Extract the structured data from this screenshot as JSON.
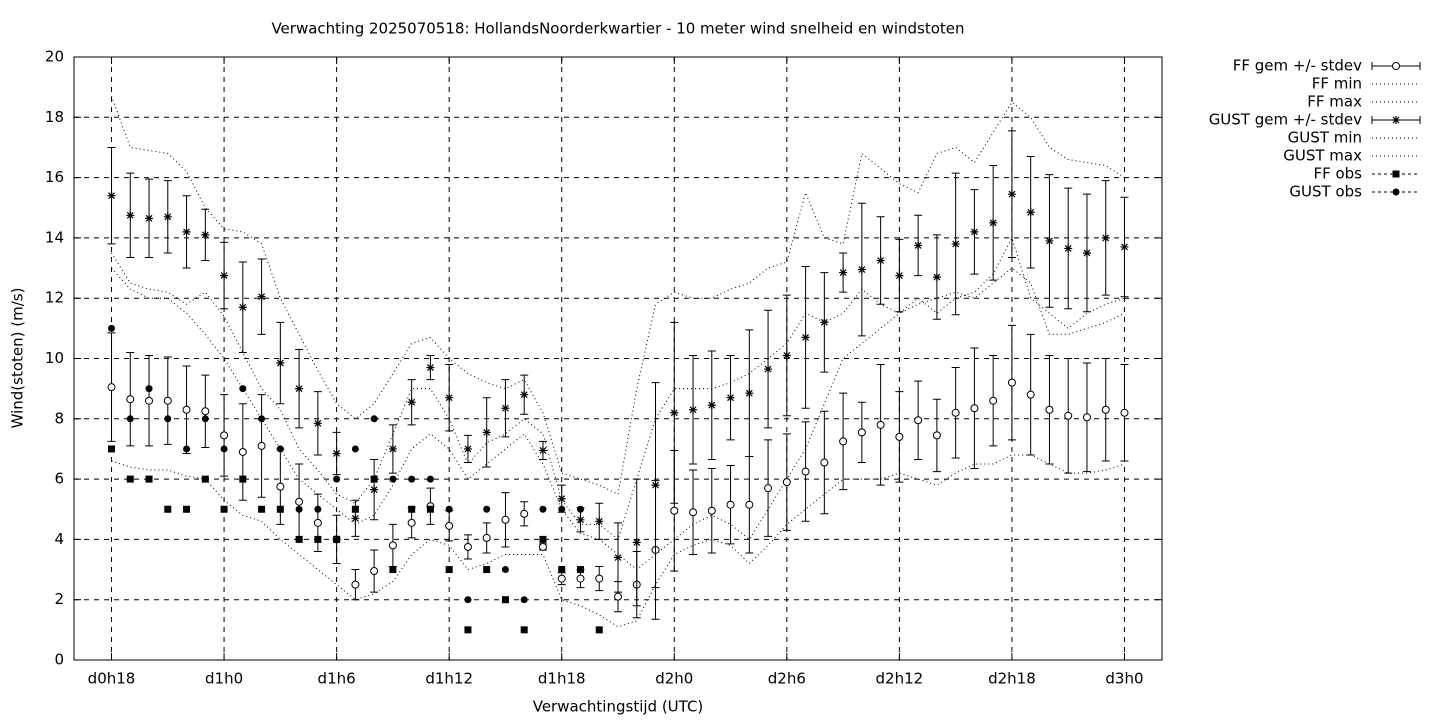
{
  "chart_data": {
    "type": "errorbar",
    "title": "Verwachting 2025070518: HollandsNoorderkwartier - 10 meter wind snelheid en windstoten",
    "xlabel": "Verwachtingstijd (UTC)",
    "ylabel": "Wind(stoten) (m/s)",
    "x": [
      0,
      1,
      2,
      3,
      4,
      5,
      6,
      7,
      8,
      9,
      10,
      11,
      12,
      13,
      14,
      15,
      16,
      17,
      18,
      19,
      20,
      21,
      22,
      23,
      24,
      25,
      26,
      27,
      28,
      29,
      30,
      31,
      32,
      33,
      34,
      35,
      36,
      37,
      38,
      39,
      40,
      41,
      42,
      43,
      44,
      45,
      46,
      47,
      48,
      49,
      50,
      51,
      52,
      53,
      54
    ],
    "xlim": [
      -2,
      56
    ],
    "xticks": [
      {
        "value": 0,
        "label": "d0h18"
      },
      {
        "value": 6,
        "label": "d1h0"
      },
      {
        "value": 12,
        "label": "d1h6"
      },
      {
        "value": 18,
        "label": "d1h12"
      },
      {
        "value": 24,
        "label": "d1h18"
      },
      {
        "value": 30,
        "label": "d2h0"
      },
      {
        "value": 36,
        "label": "d2h6"
      },
      {
        "value": 42,
        "label": "d2h12"
      },
      {
        "value": 48,
        "label": "d2h18"
      },
      {
        "value": 54,
        "label": "d3h0"
      }
    ],
    "ylim": [
      0,
      20
    ],
    "yticks": [
      0,
      2,
      4,
      6,
      8,
      10,
      12,
      14,
      16,
      18,
      20
    ],
    "grid": true,
    "legend": "outside-right",
    "series": [
      {
        "name": "FF gem +/- stdev",
        "color": "#000000",
        "marker": "open-circle",
        "values": [
          9.05,
          8.65,
          8.6,
          8.6,
          8.3,
          8.25,
          7.45,
          6.9,
          7.1,
          5.75,
          5.25,
          4.55,
          4.0,
          2.5,
          2.95,
          3.8,
          4.55,
          5.1,
          4.45,
          3.75,
          4.05,
          4.65,
          4.85,
          3.75,
          2.7,
          2.7,
          2.7,
          2.1,
          2.5,
          3.65,
          4.95,
          4.9,
          4.95,
          5.15,
          5.15,
          5.7,
          5.9,
          6.25,
          6.55,
          7.25,
          7.55,
          7.8,
          7.4,
          7.95,
          7.45,
          8.2,
          8.35,
          8.6,
          9.2,
          8.8,
          8.3,
          8.1,
          8.05,
          8.3,
          8.2
        ],
        "errors": [
          1.8,
          1.55,
          1.5,
          1.45,
          1.45,
          1.2,
          1.35,
          1.6,
          1.7,
          1.25,
          1.25,
          0.95,
          0.8,
          0.5,
          0.7,
          0.7,
          0.5,
          0.6,
          0.5,
          0.4,
          0.5,
          0.9,
          0.4,
          0.1,
          0.2,
          0.3,
          0.4,
          0.5,
          1.1,
          2.3,
          2.0,
          1.4,
          1.4,
          1.3,
          1.6,
          1.6,
          1.6,
          1.65,
          1.7,
          1.6,
          1.0,
          2.0,
          1.5,
          1.3,
          1.2,
          1.5,
          2.0,
          1.5,
          1.9,
          2.0,
          1.8,
          1.9,
          1.8,
          1.7,
          1.6
        ]
      },
      {
        "name": "FF min",
        "color": "#000000",
        "line": "dotted",
        "values": [
          6.6,
          6.4,
          6.3,
          6.3,
          6.1,
          6.0,
          5.3,
          4.8,
          4.6,
          4.0,
          3.5,
          3.0,
          2.5,
          2.0,
          2.2,
          2.6,
          3.5,
          4.0,
          3.8,
          3.0,
          3.2,
          3.5,
          3.5,
          3.5,
          2.0,
          1.8,
          1.5,
          1.1,
          1.3,
          2.5,
          3.5,
          3.8,
          4.0,
          3.8,
          3.2,
          3.8,
          4.5,
          5.0,
          5.5,
          6.0,
          6.0,
          6.0,
          6.2,
          6.0,
          5.8,
          6.2,
          6.5,
          6.5,
          6.8,
          6.8,
          6.5,
          6.2,
          6.2,
          6.3,
          6.5
        ]
      },
      {
        "name": "FF max",
        "color": "#000000",
        "line": "dotted",
        "values": [
          13.5,
          12.5,
          12.3,
          12.2,
          11.8,
          12.2,
          11.4,
          10.2,
          9.0,
          8.3,
          7.0,
          6.3,
          5.5,
          5.2,
          6.0,
          7.5,
          9.0,
          9.0,
          8.0,
          6.5,
          7.2,
          7.5,
          8.0,
          7.5,
          5.3,
          4.5,
          4.5,
          4.0,
          6.0,
          8.0,
          9.0,
          9.0,
          9.0,
          9.2,
          9.5,
          10.0,
          10.5,
          11.5,
          11.2,
          11.5,
          12.3,
          11.8,
          11.5,
          11.8,
          12.0,
          12.2,
          12.0,
          12.5,
          13.0,
          12.5,
          10.8,
          10.8,
          11.0,
          11.2,
          11.5
        ]
      },
      {
        "name": "GUST gem +/- stdev",
        "color": "#000000",
        "marker": "star",
        "values": [
          15.4,
          14.75,
          14.65,
          14.7,
          14.2,
          14.1,
          12.75,
          11.7,
          12.05,
          9.85,
          9.0,
          7.85,
          6.85,
          4.7,
          5.65,
          7.0,
          8.55,
          9.7,
          8.7,
          7.0,
          7.55,
          8.35,
          8.8,
          6.95,
          5.35,
          4.65,
          4.6,
          3.4,
          3.9,
          5.8,
          8.2,
          8.3,
          8.45,
          8.7,
          8.85,
          9.65,
          10.1,
          10.7,
          11.2,
          12.85,
          12.95,
          13.25,
          12.75,
          13.75,
          12.7,
          13.8,
          14.2,
          14.5,
          15.45,
          14.85,
          13.9,
          13.65,
          13.5,
          14.0,
          13.7
        ],
        "errors": [
          1.6,
          1.4,
          1.3,
          1.2,
          1.2,
          0.85,
          1.1,
          1.5,
          1.25,
          1.35,
          1.3,
          1.05,
          0.7,
          0.6,
          1.0,
          0.8,
          0.75,
          0.4,
          1.1,
          0.45,
          1.15,
          0.95,
          0.65,
          0.3,
          0.45,
          0.4,
          0.6,
          1.15,
          2.1,
          3.4,
          3.0,
          1.8,
          1.8,
          1.4,
          2.1,
          1.95,
          2.0,
          2.35,
          1.65,
          0.65,
          2.2,
          1.45,
          1.2,
          1.0,
          1.4,
          2.35,
          1.4,
          1.9,
          2.1,
          1.85,
          2.2,
          2.0,
          1.95,
          1.9,
          1.65
        ]
      },
      {
        "name": "GUST min",
        "color": "#000000",
        "line": "dotted",
        "values": [
          13.0,
          12.3,
          12.0,
          12.0,
          11.5,
          10.8,
          10.0,
          9.0,
          8.0,
          7.0,
          6.0,
          5.5,
          5.0,
          4.5,
          4.8,
          5.8,
          7.0,
          7.5,
          7.0,
          6.0,
          6.5,
          7.0,
          7.5,
          6.5,
          5.0,
          4.2,
          4.0,
          3.5,
          3.0,
          3.5,
          4.0,
          4.5,
          4.8,
          4.5,
          4.0,
          5.0,
          6.0,
          7.0,
          8.5,
          10.0,
          10.5,
          11.0,
          11.5,
          12.0,
          11.5,
          12.0,
          12.2,
          12.8,
          14.0,
          12.0,
          11.5,
          11.0,
          11.5,
          11.8,
          12.0
        ]
      },
      {
        "name": "GUST max",
        "color": "#000000",
        "line": "dotted",
        "values": [
          18.7,
          17.0,
          16.9,
          16.8,
          16.2,
          15.0,
          14.3,
          14.2,
          13.8,
          12.0,
          10.8,
          9.6,
          8.5,
          8.0,
          8.5,
          9.5,
          10.5,
          10.7,
          10.0,
          9.5,
          9.2,
          9.0,
          9.3,
          8.2,
          6.2,
          6.0,
          5.8,
          5.5,
          9.0,
          11.8,
          12.2,
          12.0,
          12.0,
          12.3,
          12.5,
          13.0,
          13.2,
          15.5,
          14.0,
          13.8,
          16.8,
          16.3,
          15.8,
          15.5,
          16.8,
          17.0,
          16.5,
          17.5,
          18.5,
          18.0,
          17.0,
          16.6,
          16.5,
          16.4,
          16.0
        ]
      },
      {
        "name": "FF obs",
        "color": "#000000",
        "marker": "square",
        "values": [
          7,
          6,
          6,
          5,
          5,
          6,
          5,
          6,
          5,
          5,
          4,
          4,
          4,
          5,
          6,
          3,
          5,
          5,
          3,
          1,
          3,
          2,
          1,
          4,
          3,
          3,
          1,
          null,
          null,
          null,
          null,
          null,
          null,
          null,
          null,
          null,
          null,
          null,
          null,
          null,
          null,
          null,
          null,
          null,
          null,
          null,
          null,
          null,
          null,
          null,
          null,
          null,
          null,
          null,
          null
        ]
      },
      {
        "name": "GUST obs",
        "color": "#000000",
        "marker": "filled-circle",
        "values": [
          11,
          8,
          9,
          8,
          7,
          8,
          7,
          9,
          8,
          7,
          5,
          5,
          6,
          7,
          8,
          6,
          6,
          6,
          5,
          2,
          5,
          3,
          2,
          5,
          5,
          5,
          null,
          null,
          null,
          null,
          null,
          null,
          null,
          null,
          null,
          null,
          null,
          null,
          null,
          null,
          null,
          null,
          null,
          null,
          null,
          null,
          null,
          null,
          null,
          null,
          null,
          null,
          null,
          null,
          null
        ]
      }
    ]
  }
}
